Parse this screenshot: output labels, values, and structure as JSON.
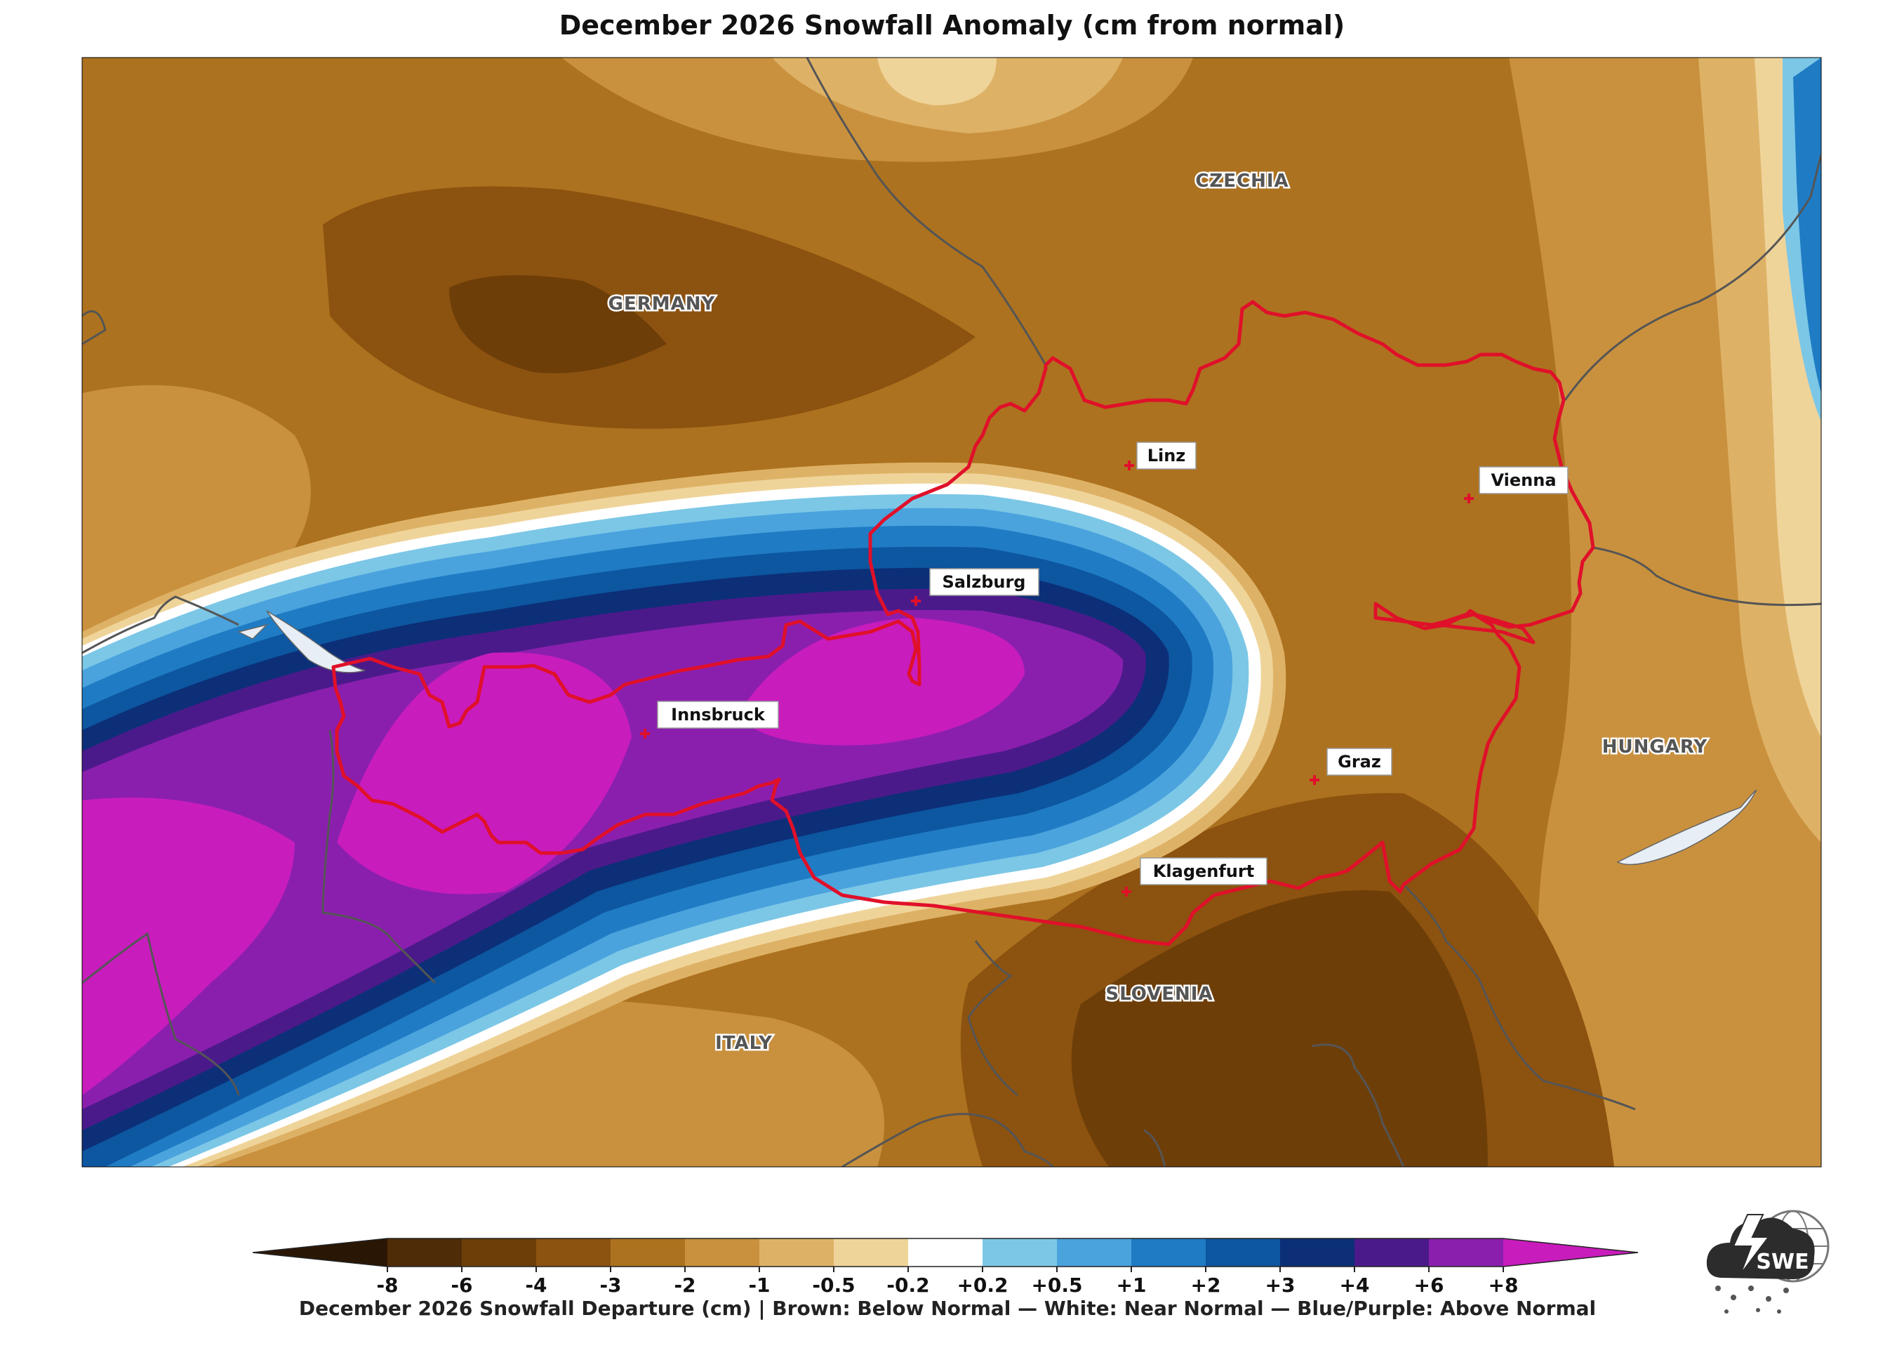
{
  "title": "December 2026 Snowfall Anomaly (cm from normal)",
  "map": {
    "countries": [
      "GERMANY",
      "CZECHIA",
      "HUNGARY",
      "SLOVENIA",
      "ITALY"
    ],
    "cities": [
      "Linz",
      "Vienna",
      "Salzburg",
      "Innsbruck",
      "Graz",
      "Klagenfurt"
    ],
    "highlight_border_color": "#e0102a",
    "border_color": "#555555"
  },
  "colorbar": {
    "ticks": [
      "-8",
      "-6",
      "-4",
      "-3",
      "-2",
      "-1",
      "-0.5",
      "-0.2",
      "+0.2",
      "+0.5",
      "+1",
      "+2",
      "+3",
      "+4",
      "+6",
      "+8"
    ],
    "colors": [
      "#2a1604",
      "#4e2c08",
      "#6e3e08",
      "#8c520f",
      "#ad721f",
      "#c9913e",
      "#deb266",
      "#efd49a",
      "#ffffff",
      "#7cc7e6",
      "#4aa3dd",
      "#1f7cc4",
      "#0d56a0",
      "#0c2f78",
      "#4b1a8a",
      "#8a1fae",
      "#c91cbd"
    ],
    "caption": "December 2026 Snowfall Departure (cm)  |  Brown: Below Normal  —  White: Near Normal  —  Blue/Purple: Above Normal"
  },
  "logo": {
    "text": "SWE",
    "icon": "storm-cloud-globe-icon"
  }
}
